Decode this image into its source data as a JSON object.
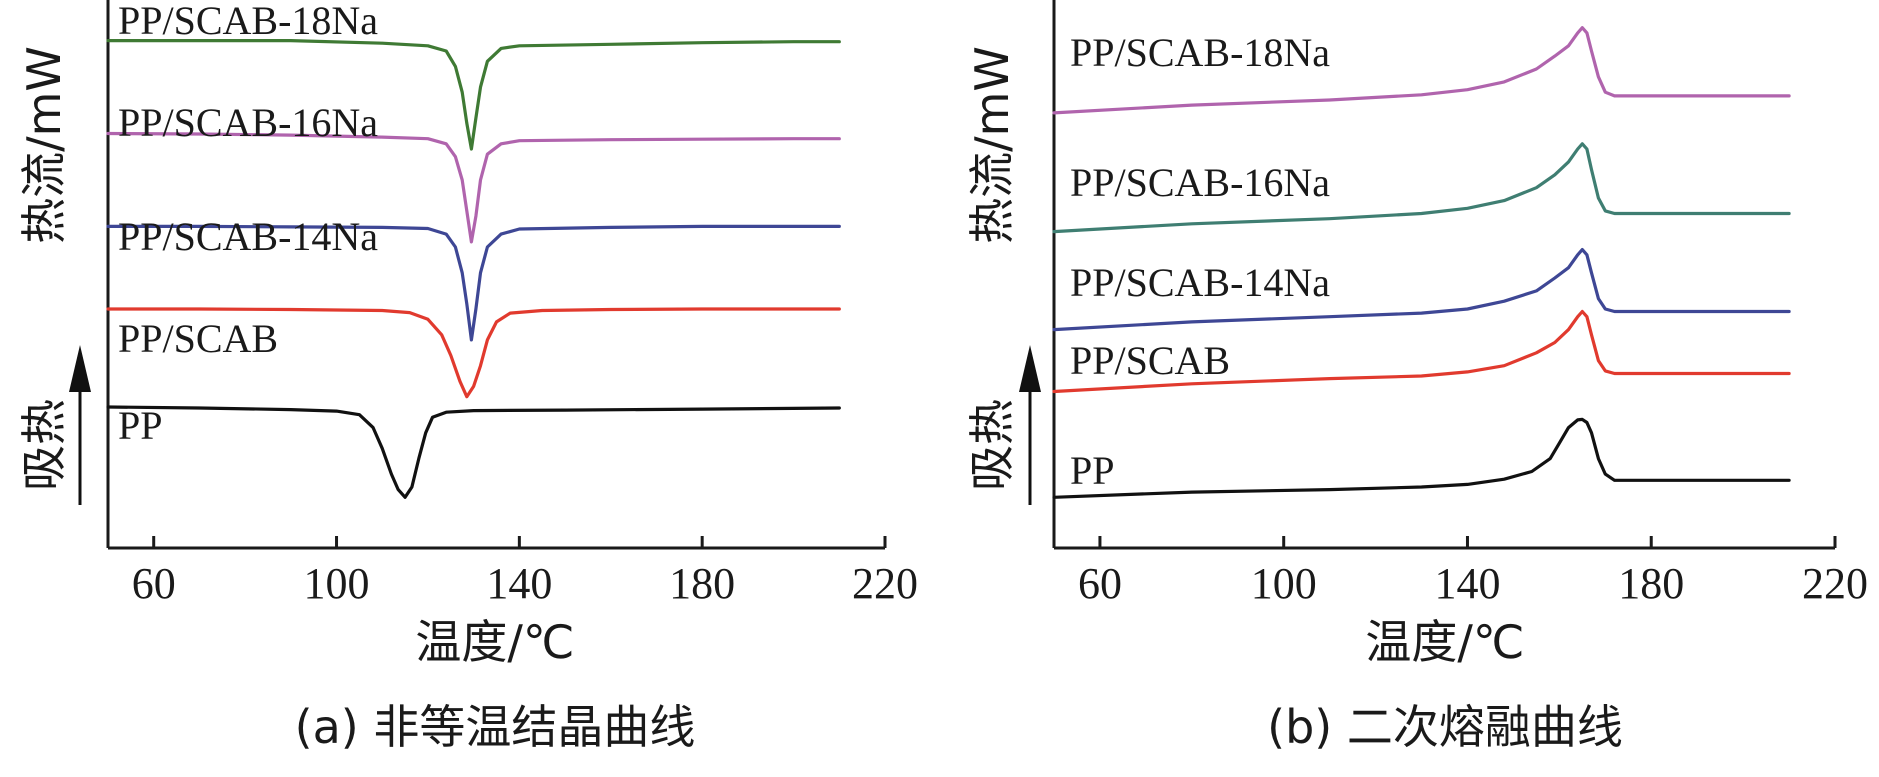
{
  "chart_data": [
    {
      "type": "line",
      "caption": "(a) 非等温结晶曲线",
      "xlabel": "温度/℃",
      "ylabel": "热流/mW",
      "endotherm_label": "吸热",
      "xlim": [
        50,
        220
      ],
      "xticks": [
        60,
        100,
        140,
        180,
        220
      ],
      "y_ticks_shown": false,
      "series": [
        {
          "name": "PP/SCAB-18Na",
          "color": "#3f7a34",
          "points": [
            [
              50,
              0.96
            ],
            [
              70,
              0.96
            ],
            [
              90,
              0.96
            ],
            [
              110,
              0.955
            ],
            [
              120,
              0.95
            ],
            [
              124,
              0.94
            ],
            [
              126,
              0.91
            ],
            [
              127.5,
              0.86
            ],
            [
              128.5,
              0.8
            ],
            [
              129.5,
              0.75
            ],
            [
              130.5,
              0.81
            ],
            [
              131.5,
              0.87
            ],
            [
              133,
              0.92
            ],
            [
              136,
              0.945
            ],
            [
              140,
              0.95
            ],
            [
              160,
              0.953
            ],
            [
              180,
              0.956
            ],
            [
              200,
              0.958
            ],
            [
              210,
              0.958
            ]
          ]
        },
        {
          "name": "PP/SCAB-16Na",
          "color": "#b064ad",
          "points": [
            [
              50,
              0.78
            ],
            [
              70,
              0.779
            ],
            [
              90,
              0.777
            ],
            [
              110,
              0.773
            ],
            [
              120,
              0.77
            ],
            [
              124,
              0.76
            ],
            [
              126,
              0.735
            ],
            [
              127.5,
              0.69
            ],
            [
              128.5,
              0.63
            ],
            [
              129.5,
              0.57
            ],
            [
              130.5,
              0.62
            ],
            [
              131.5,
              0.69
            ],
            [
              133,
              0.74
            ],
            [
              136,
              0.76
            ],
            [
              140,
              0.766
            ],
            [
              160,
              0.768
            ],
            [
              180,
              0.769
            ],
            [
              200,
              0.77
            ],
            [
              210,
              0.77
            ]
          ]
        },
        {
          "name": "PP/SCAB-14Na",
          "color": "#3e4795",
          "points": [
            [
              50,
              0.6
            ],
            [
              70,
              0.6
            ],
            [
              90,
              0.599
            ],
            [
              110,
              0.598
            ],
            [
              120,
              0.596
            ],
            [
              124,
              0.585
            ],
            [
              126,
              0.56
            ],
            [
              127.5,
              0.51
            ],
            [
              128.5,
              0.45
            ],
            [
              129.5,
              0.38
            ],
            [
              130.5,
              0.44
            ],
            [
              131.5,
              0.51
            ],
            [
              133,
              0.56
            ],
            [
              136,
              0.585
            ],
            [
              140,
              0.595
            ],
            [
              160,
              0.598
            ],
            [
              180,
              0.6
            ],
            [
              200,
              0.6
            ],
            [
              210,
              0.6
            ]
          ]
        },
        {
          "name": "PP/SCAB",
          "color": "#e13a2e",
          "points": [
            [
              50,
              0.44
            ],
            [
              70,
              0.44
            ],
            [
              90,
              0.439
            ],
            [
              110,
              0.437
            ],
            [
              116,
              0.433
            ],
            [
              120,
              0.42
            ],
            [
              123,
              0.39
            ],
            [
              125,
              0.35
            ],
            [
              127,
              0.3
            ],
            [
              128.5,
              0.27
            ],
            [
              130,
              0.29
            ],
            [
              131.5,
              0.33
            ],
            [
              133,
              0.38
            ],
            [
              135,
              0.415
            ],
            [
              138,
              0.432
            ],
            [
              145,
              0.437
            ],
            [
              160,
              0.439
            ],
            [
              180,
              0.44
            ],
            [
              210,
              0.44
            ]
          ]
        },
        {
          "name": "PP",
          "color": "#111111",
          "points": [
            [
              50,
              0.25
            ],
            [
              70,
              0.248
            ],
            [
              90,
              0.245
            ],
            [
              100,
              0.242
            ],
            [
              105,
              0.235
            ],
            [
              108,
              0.21
            ],
            [
              110,
              0.17
            ],
            [
              112,
              0.12
            ],
            [
              113.5,
              0.09
            ],
            [
              115,
              0.075
            ],
            [
              116.5,
              0.095
            ],
            [
              118,
              0.15
            ],
            [
              119.5,
              0.2
            ],
            [
              121,
              0.23
            ],
            [
              124,
              0.24
            ],
            [
              130,
              0.243
            ],
            [
              150,
              0.244
            ],
            [
              180,
              0.246
            ],
            [
              210,
              0.248
            ]
          ]
        }
      ]
    },
    {
      "type": "line",
      "caption": "(b) 二次熔融曲线",
      "xlabel": "温度/℃",
      "ylabel": "热流/mW",
      "endotherm_label": "吸热",
      "xlim": [
        50,
        220
      ],
      "xticks": [
        60,
        100,
        140,
        180,
        220
      ],
      "y_ticks_shown": false,
      "series": [
        {
          "name": "PP/SCAB-18Na",
          "color": "#b064ad",
          "points": [
            [
              50,
              0.82
            ],
            [
              80,
              0.835
            ],
            [
              110,
              0.845
            ],
            [
              130,
              0.855
            ],
            [
              140,
              0.865
            ],
            [
              148,
              0.88
            ],
            [
              155,
              0.905
            ],
            [
              159,
              0.93
            ],
            [
              162,
              0.95
            ],
            [
              164,
              0.975
            ],
            [
              165,
              0.985
            ],
            [
              166,
              0.975
            ],
            [
              167,
              0.94
            ],
            [
              168.5,
              0.89
            ],
            [
              170,
              0.86
            ],
            [
              172,
              0.853
            ],
            [
              190,
              0.853
            ],
            [
              210,
              0.853
            ]
          ]
        },
        {
          "name": "PP/SCAB-16Na",
          "color": "#3f7e72",
          "points": [
            [
              50,
              0.59
            ],
            [
              80,
              0.605
            ],
            [
              110,
              0.615
            ],
            [
              130,
              0.625
            ],
            [
              140,
              0.635
            ],
            [
              148,
              0.65
            ],
            [
              155,
              0.675
            ],
            [
              159,
              0.7
            ],
            [
              162,
              0.725
            ],
            [
              164,
              0.75
            ],
            [
              165,
              0.76
            ],
            [
              166,
              0.75
            ],
            [
              167,
              0.71
            ],
            [
              168.5,
              0.655
            ],
            [
              170,
              0.63
            ],
            [
              172,
              0.625
            ],
            [
              190,
              0.625
            ],
            [
              210,
              0.625
            ]
          ]
        },
        {
          "name": "PP/SCAB-14Na",
          "color": "#3e4795",
          "points": [
            [
              50,
              0.4
            ],
            [
              80,
              0.415
            ],
            [
              110,
              0.425
            ],
            [
              130,
              0.432
            ],
            [
              140,
              0.44
            ],
            [
              148,
              0.455
            ],
            [
              155,
              0.475
            ],
            [
              159,
              0.5
            ],
            [
              162,
              0.52
            ],
            [
              164,
              0.545
            ],
            [
              165,
              0.555
            ],
            [
              166,
              0.545
            ],
            [
              167,
              0.51
            ],
            [
              168.5,
              0.46
            ],
            [
              170,
              0.44
            ],
            [
              172,
              0.435
            ],
            [
              190,
              0.435
            ],
            [
              210,
              0.435
            ]
          ]
        },
        {
          "name": "PP/SCAB",
          "color": "#e13a2e",
          "points": [
            [
              50,
              0.28
            ],
            [
              80,
              0.295
            ],
            [
              110,
              0.305
            ],
            [
              130,
              0.31
            ],
            [
              140,
              0.318
            ],
            [
              148,
              0.33
            ],
            [
              155,
              0.355
            ],
            [
              159,
              0.375
            ],
            [
              162,
              0.4
            ],
            [
              164,
              0.425
            ],
            [
              165,
              0.435
            ],
            [
              166,
              0.425
            ],
            [
              167,
              0.39
            ],
            [
              168.5,
              0.34
            ],
            [
              170,
              0.32
            ],
            [
              172,
              0.315
            ],
            [
              190,
              0.315
            ],
            [
              210,
              0.315
            ]
          ]
        },
        {
          "name": "PP",
          "color": "#111111",
          "points": [
            [
              50,
              0.075
            ],
            [
              80,
              0.085
            ],
            [
              110,
              0.09
            ],
            [
              130,
              0.095
            ],
            [
              140,
              0.1
            ],
            [
              148,
              0.11
            ],
            [
              154,
              0.125
            ],
            [
              158,
              0.15
            ],
            [
              160,
              0.18
            ],
            [
              162,
              0.21
            ],
            [
              164,
              0.225
            ],
            [
              165,
              0.226
            ],
            [
              166,
              0.22
            ],
            [
              167,
              0.2
            ],
            [
              168.5,
              0.15
            ],
            [
              170,
              0.12
            ],
            [
              172,
              0.108
            ],
            [
              190,
              0.108
            ],
            [
              210,
              0.108
            ]
          ]
        }
      ]
    }
  ]
}
